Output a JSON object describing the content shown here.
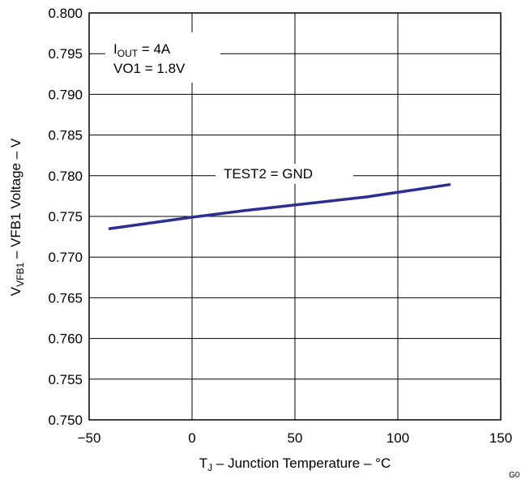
{
  "chart_data": {
    "type": "line",
    "xlim": [
      -50,
      150
    ],
    "ylim": [
      0.75,
      0.8
    ],
    "x_ticks": [
      {
        "value": -50,
        "label": "−50"
      },
      {
        "value": 0,
        "label": "0"
      },
      {
        "value": 50,
        "label": "50"
      },
      {
        "value": 100,
        "label": "100"
      },
      {
        "value": 150,
        "label": "150"
      }
    ],
    "y_ticks": [
      {
        "value": 0.75,
        "label": "0.750"
      },
      {
        "value": 0.755,
        "label": "0.755"
      },
      {
        "value": 0.76,
        "label": "0.760"
      },
      {
        "value": 0.765,
        "label": "0.765"
      },
      {
        "value": 0.77,
        "label": "0.770"
      },
      {
        "value": 0.775,
        "label": "0.775"
      },
      {
        "value": 0.78,
        "label": "0.780"
      },
      {
        "value": 0.785,
        "label": "0.785"
      },
      {
        "value": 0.79,
        "label": "0.790"
      },
      {
        "value": 0.795,
        "label": "0.795"
      },
      {
        "value": 0.8,
        "label": "0.800"
      }
    ],
    "xlabel": {
      "main": "T",
      "sub": "J",
      "rest": " – Junction Temperature – °C"
    },
    "ylabel": {
      "main": "V",
      "sub": "VFB1",
      "rest": " – VFB1 Voltage – V"
    },
    "grid": true,
    "series": [
      {
        "color": "#2b2f8f",
        "x": [
          -40,
          0,
          25,
          50,
          85,
          125
        ],
        "y": [
          0.7735,
          0.7749,
          0.7757,
          0.7764,
          0.7774,
          0.7789
        ]
      }
    ],
    "annotations": {
      "conditions": [
        {
          "main": "I",
          "sub": "OUT",
          "rest": " = 4A"
        },
        {
          "main": "VO1 = 1.8V",
          "sub": "",
          "rest": ""
        }
      ],
      "series_label": "TEST2 = GND"
    },
    "corner_text": "G0"
  }
}
